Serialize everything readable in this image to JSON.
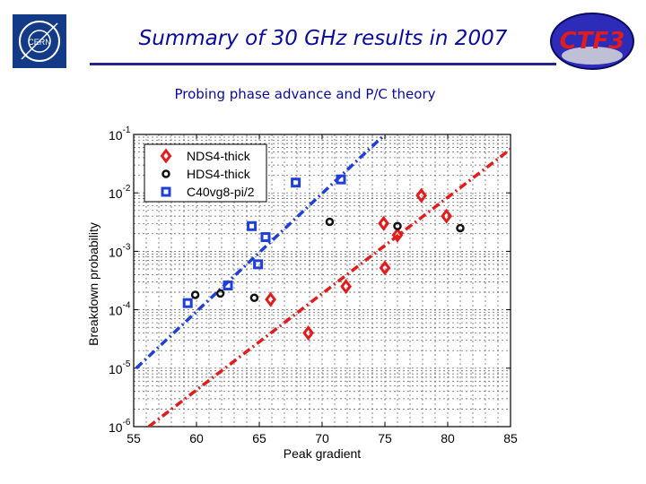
{
  "header": {
    "title": "Summary of 30 GHz results in 2007",
    "subtitle": "Probing phase advance and P/C theory",
    "cern_logo_text": "CERN",
    "ctf_logo_text": "CTF3"
  },
  "chart_data": {
    "type": "scatter",
    "title": "",
    "xlabel": "Peak gradient",
    "ylabel": "Breakdown probability",
    "xlim": [
      55,
      85
    ],
    "ylim_exponent": [
      -6,
      -1
    ],
    "y_scale": "log",
    "x_ticks": [
      55,
      60,
      65,
      70,
      75,
      80,
      85
    ],
    "y_ticks": [
      {
        "base": "10",
        "exp": "-1",
        "exponent": -1
      },
      {
        "base": "10",
        "exp": "-2",
        "exponent": -2
      },
      {
        "base": "10",
        "exp": "-3",
        "exponent": -3
      },
      {
        "base": "10",
        "exp": "-4",
        "exponent": -4
      },
      {
        "base": "10",
        "exp": "-5",
        "exponent": -5
      },
      {
        "base": "10",
        "exp": "-6",
        "exponent": -6
      }
    ],
    "grid": true,
    "legend_position": "top-left",
    "series": [
      {
        "name": "NDS4-thick",
        "color": "#e31b1b",
        "marker": "diamond",
        "points": [
          [
            65.9,
            0.00015
          ],
          [
            68.9,
            4e-05
          ],
          [
            71.9,
            0.00025
          ],
          [
            74.9,
            0.003
          ],
          [
            75.0,
            0.00052
          ],
          [
            76.0,
            0.0019
          ],
          [
            77.9,
            0.009
          ],
          [
            79.9,
            0.004
          ]
        ]
      },
      {
        "name": "HDS4-thick",
        "color": "#111111",
        "marker": "circle",
        "points": [
          [
            59.9,
            0.00018
          ],
          [
            61.9,
            0.00019
          ],
          [
            64.6,
            0.00016
          ],
          [
            70.6,
            0.0032
          ],
          [
            76.0,
            0.0027
          ],
          [
            81.0,
            0.0025
          ]
        ]
      },
      {
        "name": "C40vg8-pi/2",
        "color": "#1f3fd6",
        "marker": "square",
        "points": [
          [
            59.3,
            0.00013
          ],
          [
            62.5,
            0.00026
          ],
          [
            64.4,
            0.0027
          ],
          [
            64.9,
            0.0006
          ],
          [
            65.5,
            0.00175
          ],
          [
            67.9,
            0.015
          ],
          [
            71.5,
            0.017
          ]
        ]
      }
    ],
    "fit_lines": [
      {
        "name": "NDS4-thick fit",
        "color": "#e31b1b",
        "from": [
          56.2,
          1e-06
        ],
        "to": [
          85.0,
          0.056
        ]
      },
      {
        "name": "C40vg8-pi/2 fit",
        "color": "#1f3fd6",
        "from": [
          55.2,
          1e-05
        ],
        "to": [
          75.0,
          0.1
        ]
      }
    ]
  }
}
